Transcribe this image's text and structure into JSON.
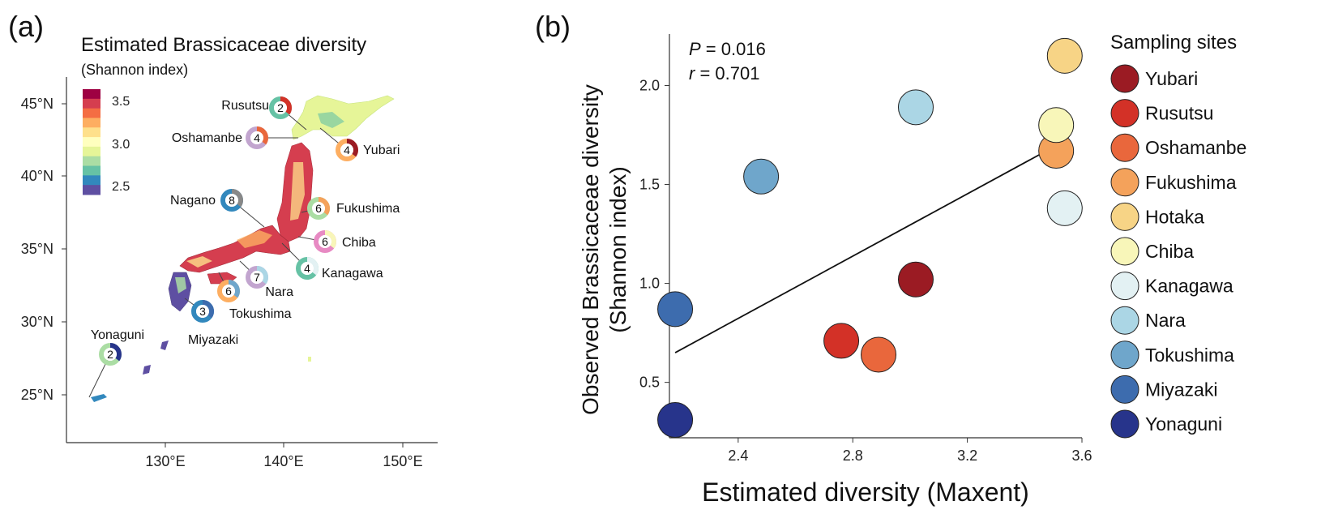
{
  "panels": {
    "a_label": "(a)",
    "b_label": "(b)"
  },
  "map": {
    "title": "Estimated Brassicaceae diversity",
    "subtitle": "(Shannon index)",
    "colorbar": {
      "ticks": [
        "3.5",
        "3.0",
        "2.5"
      ],
      "colors": [
        "#9e0142",
        "#d53e4f",
        "#f46d43",
        "#fdae61",
        "#fee08b",
        "#ffffbf",
        "#e6f598",
        "#abdda4",
        "#66c2a5",
        "#3288bd",
        "#5e4fa2"
      ]
    },
    "lat_ticks": [
      "45°N",
      "40°N",
      "35°N",
      "30°N",
      "25°N"
    ],
    "lon_ticks": [
      "130°E",
      "140°E",
      "150°E"
    ],
    "sites": [
      {
        "name": "Rusutsu",
        "n": "2"
      },
      {
        "name": "Oshamanbe",
        "n": "4"
      },
      {
        "name": "Yubari",
        "n": "4"
      },
      {
        "name": "Nagano",
        "n": "8"
      },
      {
        "name": "Fukushima",
        "n": "6"
      },
      {
        "name": "Chiba",
        "n": "6"
      },
      {
        "name": "Kanagawa",
        "n": "4"
      },
      {
        "name": "Nara",
        "n": "7"
      },
      {
        "name": "Tokushima",
        "n": "6"
      },
      {
        "name": "Miyazaki",
        "n": "3"
      },
      {
        "name": "Yonaguni",
        "n": "2"
      }
    ]
  },
  "chart_data": {
    "type": "scatter",
    "xlabel": "Estimated diversity (Maxent)",
    "ylabel_line1": "Observed Brassicaceae diversity",
    "ylabel_line2": "(Shannon index)",
    "xlim": [
      2.16,
      3.6
    ],
    "ylim": [
      0.22,
      2.26
    ],
    "xticks": [
      "2.4",
      "2.8",
      "3.2",
      "3.6"
    ],
    "yticks": [
      "0.5",
      "1.0",
      "1.5",
      "2.0"
    ],
    "stats": {
      "p_label": "P",
      "p_value": " = 0.016",
      "r_label": "r",
      "r_value": "  = 0.701"
    },
    "regression_line": {
      "x": [
        2.18,
        3.54
      ],
      "y": [
        0.65,
        1.72
      ]
    },
    "legend_title": "Sampling sites",
    "series": [
      {
        "name": "Yubari",
        "color": "#9b1b23",
        "x": 3.02,
        "y": 1.02
      },
      {
        "name": "Rusutsu",
        "color": "#d33127",
        "x": 2.76,
        "y": 0.71
      },
      {
        "name": "Oshamanbe",
        "color": "#e9673c",
        "x": 2.89,
        "y": 0.64
      },
      {
        "name": "Fukushima",
        "color": "#f4a25b",
        "x": 3.51,
        "y": 1.67
      },
      {
        "name": "Hotaka",
        "color": "#f7d486",
        "x": 3.54,
        "y": 2.15
      },
      {
        "name": "Chiba",
        "color": "#f8f6b9",
        "x": 3.51,
        "y": 1.8
      },
      {
        "name": "Kanagawa",
        "color": "#e3f1f3",
        "x": 3.54,
        "y": 1.38
      },
      {
        "name": "Nara",
        "color": "#abd6e5",
        "x": 3.02,
        "y": 1.89
      },
      {
        "name": "Tokushima",
        "color": "#6fa6cb",
        "x": 2.48,
        "y": 1.54
      },
      {
        "name": "Miyazaki",
        "color": "#3d6cae",
        "x": 2.18,
        "y": 0.87
      },
      {
        "name": "Yonaguni",
        "color": "#27348b",
        "x": 2.18,
        "y": 0.31
      }
    ]
  }
}
